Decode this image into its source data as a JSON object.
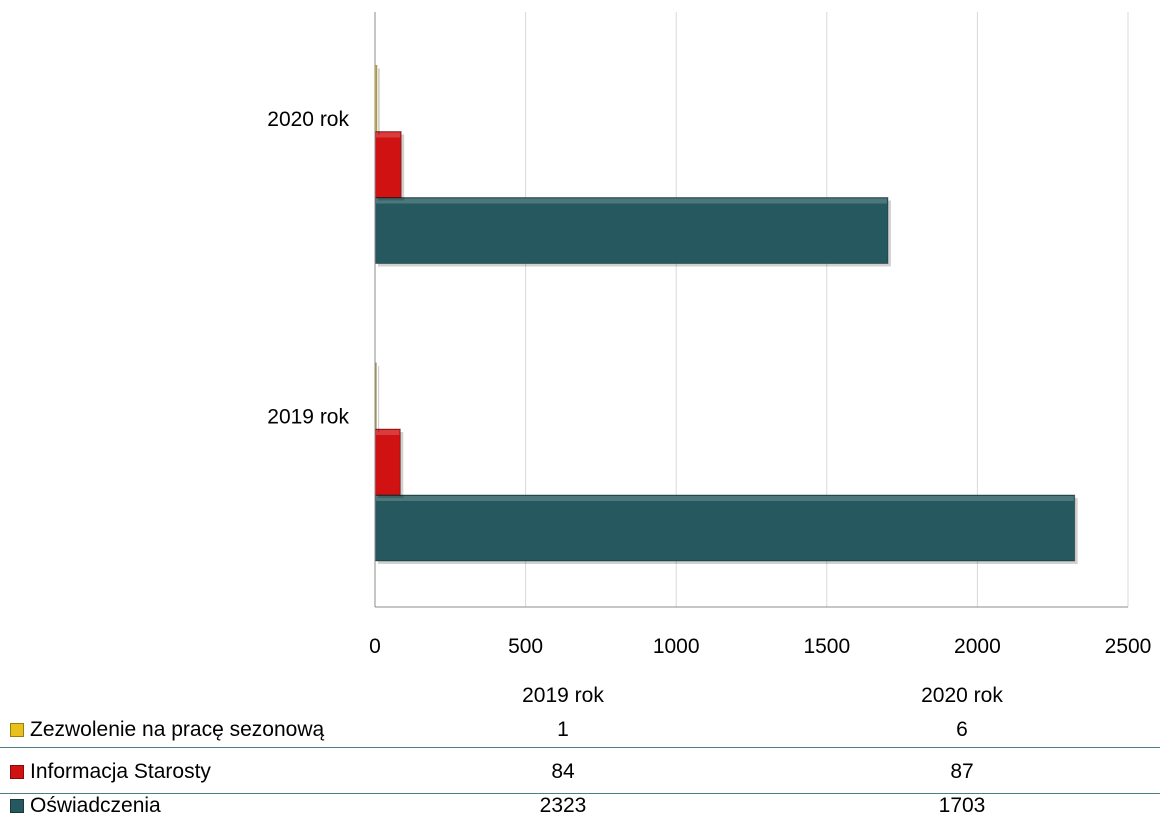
{
  "chart_data": {
    "type": "bar",
    "orientation": "horizontal",
    "categories": [
      "2019 rok",
      "2020 rok"
    ],
    "series": [
      {
        "name": "Oświadczenia",
        "values": [
          2323,
          1703
        ],
        "color": "#25595f"
      },
      {
        "name": "Informacja Starosty",
        "values": [
          84,
          87
        ],
        "color": "#d01212"
      },
      {
        "name": "Zezwolenie na pracę sezonową",
        "values": [
          1,
          6
        ],
        "color": "#e8c21a"
      }
    ],
    "xlim": [
      0,
      2500
    ],
    "x_ticks": [
      "0",
      "500",
      "1000",
      "1500",
      "2000",
      "2500"
    ],
    "grid": "vertical",
    "legend": "data-table-below"
  },
  "table": {
    "columns": [
      "2019 rok",
      "2020 rok"
    ],
    "rows": [
      {
        "name": "Zezwolenie na pracę sezonową",
        "values": [
          "1",
          "6"
        ],
        "color": "#e8c21a"
      },
      {
        "name": "Informacja Starosty",
        "values": [
          "84",
          "87"
        ],
        "color": "#d01212"
      },
      {
        "name": "Oświadczenia",
        "values": [
          "2323",
          "1703"
        ],
        "color": "#25595f"
      }
    ]
  }
}
